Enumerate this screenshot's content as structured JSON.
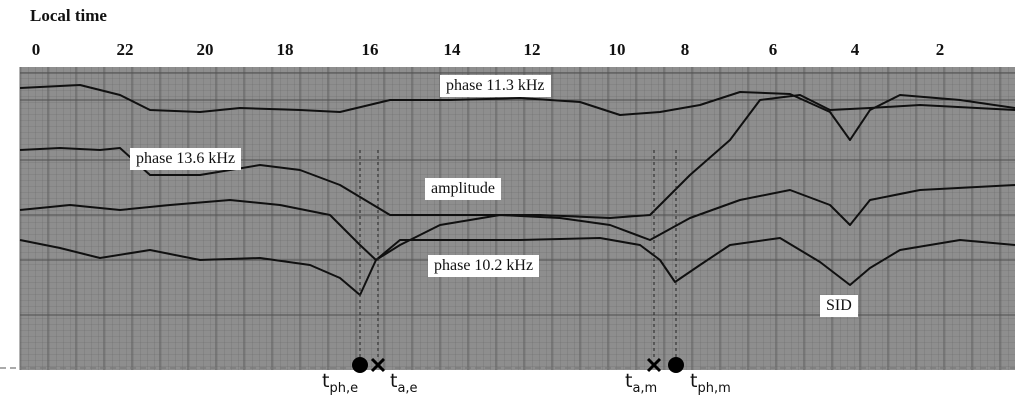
{
  "chart_data": {
    "type": "line",
    "title": "Local time",
    "x_ticks": [
      "0",
      "22",
      "20",
      "18",
      "16",
      "14",
      "12",
      "10",
      "8",
      "6",
      "4",
      "2"
    ],
    "series": [
      {
        "name": "phase 11.3 kHz",
        "values": []
      },
      {
        "name": "phase 13.6 kHz",
        "values": []
      },
      {
        "name": "amplitude",
        "values": []
      },
      {
        "name": "phase 10.2 kHz",
        "values": []
      }
    ],
    "annotations": [
      {
        "text": "SID"
      }
    ],
    "markers": [
      {
        "base": "t",
        "sub": "ph,e",
        "symbol": "dot"
      },
      {
        "base": "t",
        "sub": "a,e",
        "symbol": "cross"
      },
      {
        "base": "t",
        "sub": "a,m",
        "symbol": "cross"
      },
      {
        "base": "t",
        "sub": "ph,m",
        "symbol": "dot"
      }
    ],
    "grid": true,
    "background": "#8e8e8e"
  }
}
